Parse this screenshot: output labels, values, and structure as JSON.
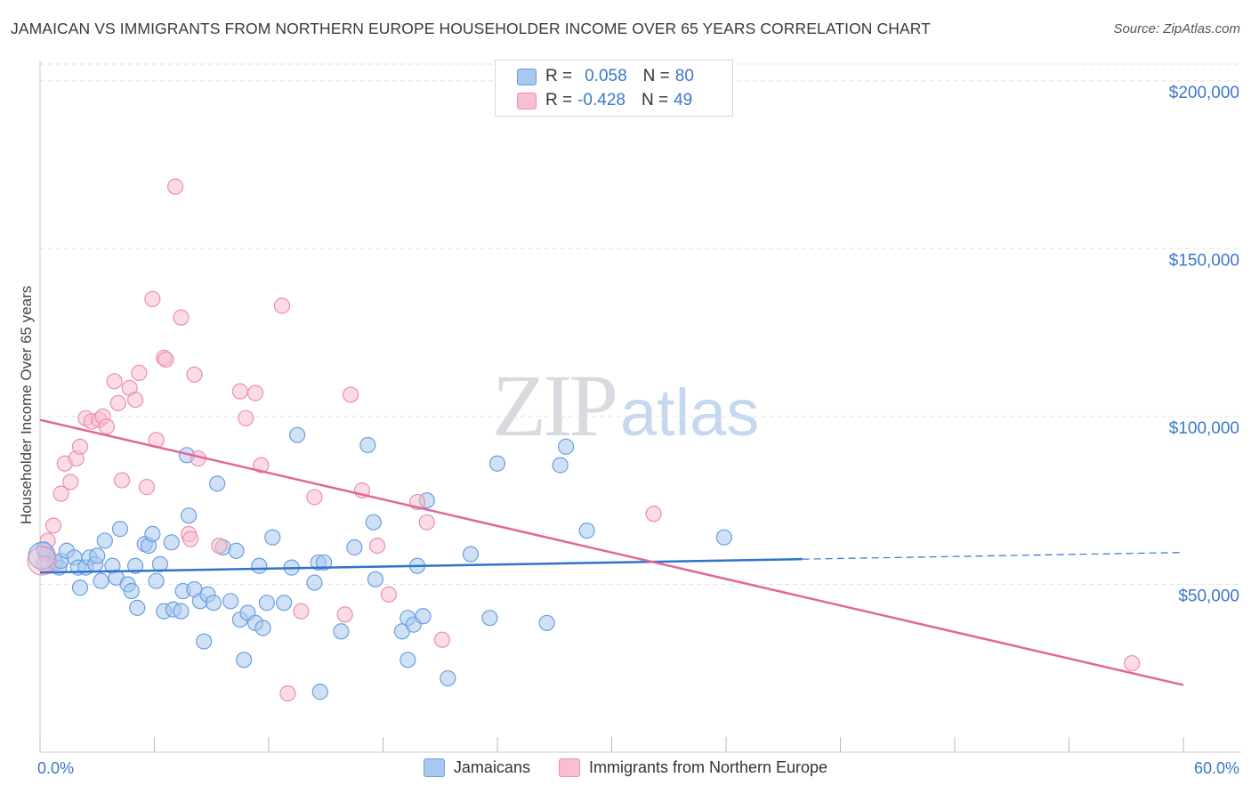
{
  "header": {
    "title": "JAMAICAN VS IMMIGRANTS FROM NORTHERN EUROPE HOUSEHOLDER INCOME OVER 65 YEARS CORRELATION CHART",
    "source": "Source: ZipAtlas.com"
  },
  "watermark": {
    "zip": "ZIP",
    "atlas": "atlas"
  },
  "stats": [
    {
      "r_label": "R =",
      "r_value": "0.058",
      "n_label": "N =",
      "n_value": "80",
      "color": "#a9c8ef",
      "border": "#6a9fe0"
    },
    {
      "r_label": "R =",
      "r_value": "-0.428",
      "n_label": "N =",
      "n_value": "49",
      "color": "#f7bfd0",
      "border": "#ea8fae"
    }
  ],
  "legend": [
    {
      "label": "Jamaicans",
      "color": "#a9c8ef",
      "border": "#6a9fe0"
    },
    {
      "label": "Immigrants from Northern Europe",
      "color": "#f7bfd0",
      "border": "#ea8fae"
    }
  ],
  "chart_data": {
    "type": "scatter",
    "title": "JAMAICAN VS IMMIGRANTS FROM NORTHERN EUROPE HOUSEHOLDER INCOME OVER 65 YEARS CORRELATION CHART",
    "xlabel": "",
    "ylabel": "Householder Income Over 65 years",
    "xlim": [
      0,
      60
    ],
    "ylim": [
      0,
      205000
    ],
    "x_tick_labels": {
      "min": "0.0%",
      "max": "60.0%"
    },
    "y_ticks": [
      {
        "value": 50000,
        "label": "$50,000"
      },
      {
        "value": 100000,
        "label": "$100,000"
      },
      {
        "value": 150000,
        "label": "$150,000"
      },
      {
        "value": 200000,
        "label": "$200,000"
      }
    ],
    "grid": "horizontal dashed",
    "legend_position": "bottom-center",
    "series": [
      {
        "name": "Jamaicans",
        "color": "#6a9fe0",
        "fill": "#a9c8ef",
        "trend": {
          "x0": 0,
          "y0": 53500,
          "x1": 40,
          "y1": 57500,
          "dashed_to": 60,
          "dashed_y": 59500
        },
        "points": [
          [
            0.3,
            59000
          ],
          [
            0.4,
            56000
          ],
          [
            0.8,
            56500
          ],
          [
            1.0,
            55000
          ],
          [
            1.1,
            57000
          ],
          [
            1.4,
            60000
          ],
          [
            1.8,
            58000
          ],
          [
            2.0,
            55000
          ],
          [
            2.1,
            49000
          ],
          [
            2.4,
            55000
          ],
          [
            2.6,
            58000
          ],
          [
            2.9,
            56000
          ],
          [
            3.2,
            51000
          ],
          [
            3.4,
            63000
          ],
          [
            3.8,
            55500
          ],
          [
            4.0,
            52000
          ],
          [
            4.2,
            66500
          ],
          [
            4.6,
            50000
          ],
          [
            4.8,
            48000
          ],
          [
            5.0,
            55500
          ],
          [
            5.1,
            43000
          ],
          [
            5.5,
            62000
          ],
          [
            5.7,
            61500
          ],
          [
            5.9,
            65000
          ],
          [
            6.1,
            51000
          ],
          [
            6.3,
            56000
          ],
          [
            6.5,
            42000
          ],
          [
            6.9,
            62500
          ],
          [
            7.0,
            42500
          ],
          [
            7.4,
            42000
          ],
          [
            7.5,
            48000
          ],
          [
            7.7,
            88500
          ],
          [
            7.8,
            70500
          ],
          [
            8.1,
            48500
          ],
          [
            8.4,
            45000
          ],
          [
            8.6,
            33000
          ],
          [
            8.8,
            47000
          ],
          [
            9.1,
            44500
          ],
          [
            9.3,
            80000
          ],
          [
            9.6,
            61000
          ],
          [
            10.0,
            45000
          ],
          [
            10.3,
            60000
          ],
          [
            10.5,
            39500
          ],
          [
            10.7,
            27500
          ],
          [
            10.9,
            41500
          ],
          [
            11.3,
            38500
          ],
          [
            11.5,
            55500
          ],
          [
            11.7,
            37000
          ],
          [
            11.9,
            44500
          ],
          [
            12.2,
            64000
          ],
          [
            12.8,
            44500
          ],
          [
            13.2,
            55000
          ],
          [
            13.5,
            94500
          ],
          [
            14.4,
            50500
          ],
          [
            14.6,
            56500
          ],
          [
            14.9,
            56500
          ],
          [
            14.7,
            18000
          ],
          [
            15.8,
            36000
          ],
          [
            16.5,
            61000
          ],
          [
            17.2,
            91500
          ],
          [
            17.5,
            68500
          ],
          [
            17.6,
            51500
          ],
          [
            19.0,
            36000
          ],
          [
            19.3,
            27500
          ],
          [
            19.3,
            40000
          ],
          [
            19.6,
            38000
          ],
          [
            19.8,
            55500
          ],
          [
            20.1,
            40500
          ],
          [
            20.3,
            75000
          ],
          [
            21.4,
            22000
          ],
          [
            22.6,
            59000
          ],
          [
            23.6,
            40000
          ],
          [
            24.0,
            86000
          ],
          [
            26.6,
            38500
          ],
          [
            27.3,
            85500
          ],
          [
            27.6,
            91000
          ],
          [
            28.7,
            66000
          ],
          [
            35.9,
            64000
          ],
          [
            0.2,
            60500
          ],
          [
            3.0,
            58500
          ]
        ]
      },
      {
        "name": "Immigrants from Northern Europe",
        "color": "#ea8fae",
        "fill": "#f7bfd0",
        "trend": {
          "x0": 0,
          "y0": 99000,
          "x1": 60,
          "y1": 20000
        },
        "points": [
          [
            0.2,
            56000
          ],
          [
            0.4,
            63000
          ],
          [
            0.7,
            67500
          ],
          [
            1.1,
            77000
          ],
          [
            1.3,
            86000
          ],
          [
            1.6,
            80500
          ],
          [
            1.9,
            87500
          ],
          [
            2.1,
            91000
          ],
          [
            2.4,
            99500
          ],
          [
            2.7,
            98500
          ],
          [
            3.1,
            99000
          ],
          [
            3.3,
            100000
          ],
          [
            3.5,
            97000
          ],
          [
            3.9,
            110500
          ],
          [
            4.1,
            104000
          ],
          [
            4.3,
            81000
          ],
          [
            4.7,
            108500
          ],
          [
            5.0,
            105000
          ],
          [
            5.2,
            113000
          ],
          [
            5.6,
            79000
          ],
          [
            5.9,
            135000
          ],
          [
            6.1,
            93000
          ],
          [
            6.5,
            117500
          ],
          [
            6.6,
            117000
          ],
          [
            7.1,
            168500
          ],
          [
            7.4,
            129500
          ],
          [
            7.8,
            65000
          ],
          [
            7.9,
            63500
          ],
          [
            8.1,
            112500
          ],
          [
            8.3,
            87500
          ],
          [
            9.4,
            61500
          ],
          [
            10.5,
            107500
          ],
          [
            10.8,
            99500
          ],
          [
            11.3,
            107000
          ],
          [
            11.6,
            85500
          ],
          [
            12.7,
            133000
          ],
          [
            13.0,
            17500
          ],
          [
            13.7,
            42000
          ],
          [
            14.4,
            76000
          ],
          [
            16.0,
            41000
          ],
          [
            16.3,
            106500
          ],
          [
            16.9,
            78000
          ],
          [
            17.7,
            61500
          ],
          [
            18.3,
            47000
          ],
          [
            19.8,
            74500
          ],
          [
            20.3,
            68500
          ],
          [
            21.1,
            33500
          ],
          [
            32.2,
            71000
          ],
          [
            57.3,
            26500
          ]
        ]
      }
    ]
  }
}
